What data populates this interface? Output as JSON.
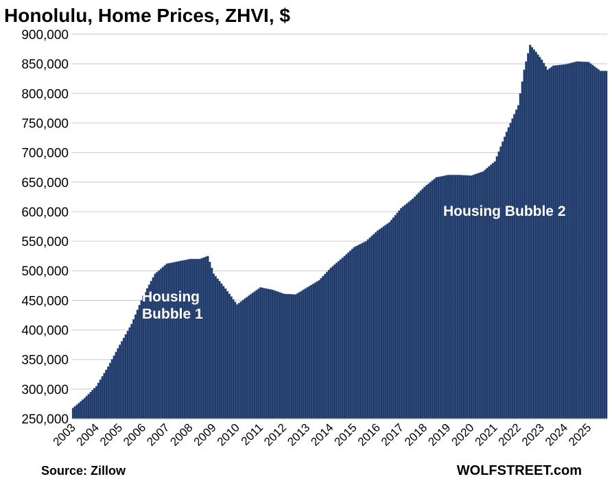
{
  "chart_data": {
    "type": "bar",
    "title": "Honolulu, Home Prices, ZHVI, $",
    "source": "Source: Zillow",
    "watermark": "WOLFSTREET.com",
    "xlabel": "",
    "ylabel": "",
    "ylim": [
      250000,
      900000
    ],
    "yticks": [
      250000,
      300000,
      350000,
      400000,
      450000,
      500000,
      550000,
      600000,
      650000,
      700000,
      750000,
      800000,
      850000,
      900000
    ],
    "ytick_labels": [
      "250,000",
      "300,000",
      "350,000",
      "400,000",
      "450,000",
      "500,000",
      "550,000",
      "600,000",
      "650,000",
      "700,000",
      "750,000",
      "800,000",
      "850,000",
      "900,000"
    ],
    "year_labels": [
      "2003",
      "2004",
      "2005",
      "2006",
      "2007",
      "2008",
      "2009",
      "2010",
      "2011",
      "2012",
      "2013",
      "2014",
      "2015",
      "2016",
      "2017",
      "2018",
      "2019",
      "2020",
      "2021",
      "2022",
      "2023",
      "2024",
      "2025"
    ],
    "grid": true,
    "bar_color": "#1f3864",
    "annotations": [
      {
        "lines": [
          "Housing",
          "Bubble 1"
        ]
      },
      {
        "lines": [
          "Housing Bubble 2"
        ]
      }
    ],
    "frequency": "monthly",
    "start": "2003-01",
    "end": "2025-10",
    "anchor_points": [
      [
        "2003-01",
        268000
      ],
      [
        "2003-07",
        285000
      ],
      [
        "2004-01",
        305000
      ],
      [
        "2004-07",
        338000
      ],
      [
        "2005-01",
        375000
      ],
      [
        "2005-07",
        410000
      ],
      [
        "2006-01",
        458000
      ],
      [
        "2006-07",
        495000
      ],
      [
        "2007-01",
        512000
      ],
      [
        "2007-07",
        516000
      ],
      [
        "2008-01",
        520000
      ],
      [
        "2008-06",
        520000
      ],
      [
        "2008-10",
        525000
      ],
      [
        "2009-01",
        495000
      ],
      [
        "2009-07",
        470000
      ],
      [
        "2010-01",
        443000
      ],
      [
        "2010-07",
        458000
      ],
      [
        "2011-01",
        472000
      ],
      [
        "2011-07",
        468000
      ],
      [
        "2012-01",
        461000
      ],
      [
        "2012-07",
        460000
      ],
      [
        "2013-01",
        472000
      ],
      [
        "2013-07",
        484000
      ],
      [
        "2014-01",
        505000
      ],
      [
        "2014-07",
        522000
      ],
      [
        "2015-01",
        540000
      ],
      [
        "2015-07",
        550000
      ],
      [
        "2016-01",
        568000
      ],
      [
        "2016-07",
        582000
      ],
      [
        "2017-01",
        606000
      ],
      [
        "2017-07",
        622000
      ],
      [
        "2018-01",
        642000
      ],
      [
        "2018-07",
        658000
      ],
      [
        "2019-01",
        662000
      ],
      [
        "2019-07",
        662000
      ],
      [
        "2020-01",
        661000
      ],
      [
        "2020-07",
        668000
      ],
      [
        "2021-01",
        685000
      ],
      [
        "2021-07",
        735000
      ],
      [
        "2022-01",
        780000
      ],
      [
        "2022-04",
        840000
      ],
      [
        "2022-07",
        882000
      ],
      [
        "2022-10",
        870000
      ],
      [
        "2023-01",
        857000
      ],
      [
        "2023-04",
        840000
      ],
      [
        "2023-07",
        847000
      ],
      [
        "2024-01",
        849000
      ],
      [
        "2024-07",
        854000
      ],
      [
        "2025-01",
        853000
      ],
      [
        "2025-07",
        838000
      ],
      [
        "2025-10",
        838000
      ]
    ]
  }
}
